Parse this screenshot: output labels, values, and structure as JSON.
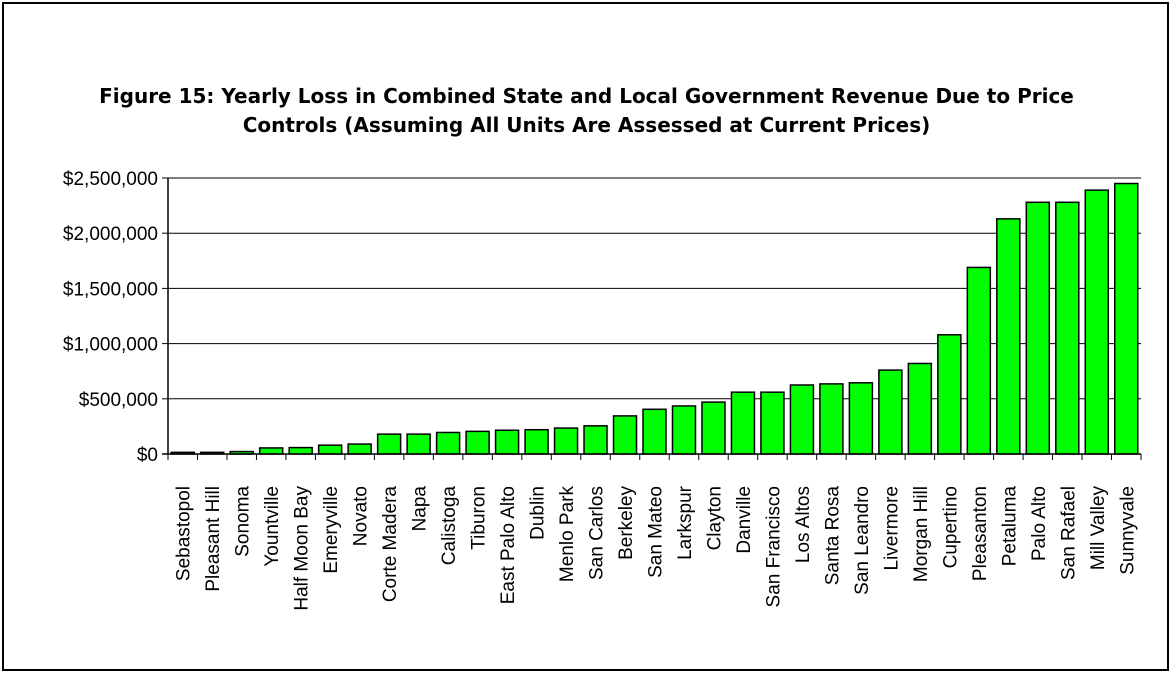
{
  "chart_data": {
    "type": "bar",
    "title_line1": "Figure 15: Yearly Loss in Combined State and Local Government Revenue Due to Price",
    "title_line2": "Controls (Assuming All Units Are Assessed at Current Prices)",
    "xlabel": "",
    "ylabel": "",
    "ylim": [
      0,
      2500000
    ],
    "yticks": [
      0,
      500000,
      1000000,
      1500000,
      2000000,
      2500000
    ],
    "ytick_labels": [
      "$0",
      "$500,000",
      "$1,000,000",
      "$1,500,000",
      "$2,000,000",
      "$2,500,000"
    ],
    "grid": true,
    "legend": "none",
    "bar_color": "#00ff00",
    "categories": [
      "Sebastopol",
      "Pleasant Hill",
      "Sonoma",
      "Yountville",
      "Half Moon Bay",
      "Emeryville",
      "Novato",
      "Corte Madera",
      "Napa",
      "Calistoga",
      "Tiburon",
      "East Palo Alto",
      "Dublin",
      "Menlo Park",
      "San Carlos",
      "Berkeley",
      "San Mateo",
      "Larkspur",
      "Clayton",
      "Danville",
      "San Francisco",
      "Los Altos",
      "Santa Rosa",
      "San Leandro",
      "Livermore",
      "Morgan Hill",
      "Cupertino",
      "Pleasanton",
      "Petaluma",
      "Palo Alto",
      "San Rafael",
      "Mill Valley",
      "Sunnyvale"
    ],
    "values": [
      15000,
      15000,
      22000,
      55000,
      58000,
      80000,
      90000,
      180000,
      180000,
      195000,
      205000,
      215000,
      220000,
      235000,
      255000,
      345000,
      405000,
      435000,
      470000,
      560000,
      560000,
      625000,
      635000,
      645000,
      760000,
      820000,
      1080000,
      1690000,
      2130000,
      2280000,
      2280000,
      2390000,
      2450000
    ]
  }
}
